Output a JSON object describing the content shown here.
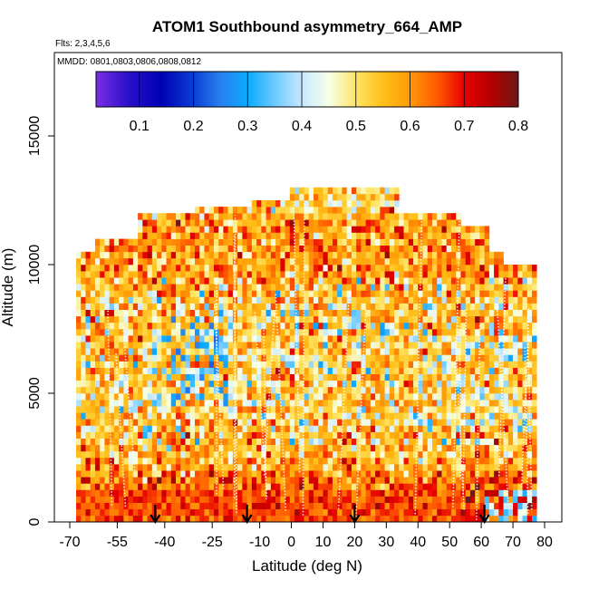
{
  "chart_data": {
    "type": "heatmap",
    "title": "ATOM1 Southbound asymmetry_664_AMP",
    "flights_note": "Flts: 2,3,4,5,6",
    "dates_note": "MMDD: 0801,0803,0806,0808,0812",
    "xlabel": "Latitude (deg N)",
    "ylabel": "Altitude (m)",
    "xlim": [
      -70,
      80
    ],
    "ylim": [
      0,
      17500
    ],
    "x_ticks": [
      -70,
      -55,
      -40,
      -25,
      -10,
      0,
      10,
      20,
      30,
      40,
      50,
      60,
      70,
      80
    ],
    "x_tick_labels": [
      "-70",
      "-55",
      "-40",
      "-25",
      "-10",
      "0",
      "10",
      "20",
      "30",
      "40",
      "50",
      "60",
      "70",
      "80"
    ],
    "y_ticks": [
      0,
      5000,
      10000,
      15000
    ],
    "y_tick_labels": [
      "0",
      "5000",
      "10000",
      "15000"
    ],
    "colorbar": {
      "range": [
        0.02,
        0.8
      ],
      "ticks": [
        0.1,
        0.2,
        0.3,
        0.4,
        0.5,
        0.6,
        0.7,
        0.8
      ],
      "tick_labels": [
        "0.1",
        "0.2",
        "0.3",
        "0.4",
        "0.5",
        "0.6",
        "0.7",
        "0.8"
      ],
      "stops": [
        {
          "v": 0.02,
          "c": "#7a2ee6"
        },
        {
          "v": 0.08,
          "c": "#2a10c8"
        },
        {
          "v": 0.14,
          "c": "#0000b4"
        },
        {
          "v": 0.2,
          "c": "#0b3fd6"
        },
        {
          "v": 0.25,
          "c": "#2a80f0"
        },
        {
          "v": 0.3,
          "c": "#0aaaff"
        },
        {
          "v": 0.35,
          "c": "#6ccaff"
        },
        {
          "v": 0.4,
          "c": "#c8e8ff"
        },
        {
          "v": 0.45,
          "c": "#f6ffe8"
        },
        {
          "v": 0.5,
          "c": "#ffe566"
        },
        {
          "v": 0.55,
          "c": "#ffbf18"
        },
        {
          "v": 0.6,
          "c": "#ff9a08"
        },
        {
          "v": 0.65,
          "c": "#ff5a00"
        },
        {
          "v": 0.7,
          "c": "#e80000"
        },
        {
          "v": 0.75,
          "c": "#b50000"
        },
        {
          "v": 0.8,
          "c": "#6e1818"
        }
      ]
    },
    "column_top_altitudes": [
      {
        "lat_min": -68,
        "lat_max": -62,
        "top": 10500
      },
      {
        "lat_min": -62,
        "lat_max": -48,
        "top": 11000
      },
      {
        "lat_min": -48,
        "lat_max": -30,
        "top": 12000
      },
      {
        "lat_min": -30,
        "lat_max": 0,
        "top": 12100
      },
      {
        "lat_min": -12,
        "lat_max": 10,
        "top": 12500
      },
      {
        "lat_min": 0,
        "lat_max": 34,
        "top": 12900
      },
      {
        "lat_min": 34,
        "lat_max": 53,
        "top": 12000
      },
      {
        "lat_min": 53,
        "lat_max": 62,
        "top": 11300
      },
      {
        "lat_min": 62,
        "lat_max": 67,
        "top": 10500
      },
      {
        "lat_min": 67,
        "lat_max": 78,
        "top": 10000
      }
    ],
    "altitude_profile_mean_AMP": [
      {
        "alt": 500,
        "mean": 0.69
      },
      {
        "alt": 1500,
        "mean": 0.63
      },
      {
        "alt": 2500,
        "mean": 0.56
      },
      {
        "alt": 3500,
        "mean": 0.56
      },
      {
        "alt": 4500,
        "mean": 0.52
      },
      {
        "alt": 5500,
        "mean": 0.54
      },
      {
        "alt": 6500,
        "mean": 0.53
      },
      {
        "alt": 7500,
        "mean": 0.55
      },
      {
        "alt": 8500,
        "mean": 0.55
      },
      {
        "alt": 9500,
        "mean": 0.58
      },
      {
        "alt": 10500,
        "mean": 0.6
      },
      {
        "alt": 11500,
        "mean": 0.59
      },
      {
        "alt": 12500,
        "mean": 0.52
      }
    ],
    "profile_marker_latitudes": [
      -43,
      -14,
      20,
      61
    ]
  }
}
